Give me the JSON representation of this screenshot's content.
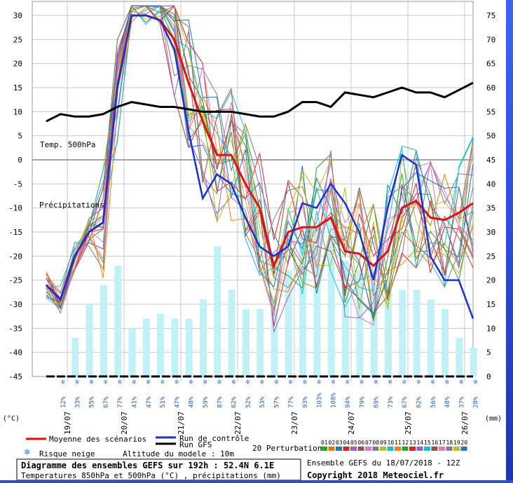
{
  "chart_data": {
    "type": "line",
    "title": "Diagramme des ensembles GEFS sur 192h : 52.4N 6.1E",
    "subtitle": "Temperatures 850hPa et 500hPa (°C) , précipitations (mm)",
    "model_altitude": "Altitude du modele : 10m",
    "run_info": "Ensemble GEFS du 18/07/2018 - 12Z",
    "copyright": "Copyright 2018 Meteociel.fr",
    "y_left_unit": "(°C)",
    "y_right_unit": "(mm)",
    "y_left_ticks": [
      "30",
      "25",
      "20",
      "15",
      "10",
      "5",
      "0",
      "-5",
      "-10",
      "-15",
      "-20",
      "-25",
      "-30",
      "-35",
      "-40",
      "-45"
    ],
    "y_right_ticks": [
      "75",
      "70",
      "65",
      "60",
      "55",
      "50",
      "45",
      "40",
      "35",
      "30",
      "25",
      "20",
      "15",
      "10",
      "5",
      "0"
    ],
    "ylim_left": [
      -45,
      30
    ],
    "ylim_right": [
      0,
      75
    ],
    "x_ticks": [
      "19/07",
      "20/07",
      "21/07",
      "22/07",
      "23/07",
      "24/07",
      "25/07",
      "26/07"
    ],
    "annotations": {
      "temp500": "Temp. 500hPa",
      "precip": "Précipitations"
    },
    "legend": {
      "mean": "Moyenne des scénarios",
      "control": "Run de contrôle",
      "gfs": "Run GFS",
      "perturbations": "20 Perturbations",
      "snow": "Risque neige",
      "member_numbers": [
        "01",
        "02",
        "03",
        "04",
        "05",
        "06",
        "07",
        "08",
        "09",
        "10",
        "11",
        "12",
        "13",
        "14",
        "15",
        "16",
        "17",
        "18",
        "19",
        "20"
      ],
      "member_colors": [
        "#2ca02c",
        "#e07b00",
        "#1f77b4",
        "#d62728",
        "#9467bd",
        "#8c564b",
        "#e377c2",
        "#7f7f7f",
        "#bcbd22",
        "#17becf",
        "#ff7f0e",
        "#2ca02c",
        "#d62728",
        "#9467bd",
        "#17becf",
        "#8c564b",
        "#e377c2",
        "#7f7f7f",
        "#bcbd22",
        "#1f77b4"
      ]
    },
    "snow_risk_labels": [
      "12%",
      "33%",
      "55%",
      "67%",
      "77%",
      "41%",
      "47%",
      "51%",
      "47%",
      "48%",
      "59%",
      "87%",
      "62%",
      "52%",
      "53%",
      "57%",
      "77%",
      "93%",
      "103%",
      "108%",
      "94%",
      "79%",
      "69%",
      "73%",
      "67%",
      "62%",
      "56%",
      "48%",
      "37%",
      "28%"
    ],
    "precip_bars": [
      0,
      8,
      15,
      19,
      23,
      10,
      12,
      13,
      12,
      12,
      16,
      27,
      18,
      14,
      14,
      14,
      22,
      30,
      32,
      33,
      24,
      22,
      19,
      20,
      18,
      18,
      16,
      14,
      8,
      6
    ],
    "series": [
      {
        "name": "Moyenne des scénarios",
        "color": "#e01010",
        "x": [
          0,
          1,
          2,
          3,
          4,
          5,
          6,
          7,
          8,
          9,
          10,
          11,
          12,
          13,
          14,
          15,
          16,
          17,
          18,
          19,
          20,
          21,
          22,
          23,
          24,
          25,
          26,
          27,
          28,
          29,
          30
        ],
        "values": [
          -26,
          -29,
          -20,
          -15,
          -13,
          15,
          30,
          30,
          29,
          25,
          16,
          8,
          1,
          1,
          -5,
          -10,
          -22,
          -15,
          -14,
          -14,
          -12,
          -19,
          -19.5,
          -22,
          -19,
          -10,
          -8.5,
          -12,
          -12.5,
          -11,
          -9
        ]
      },
      {
        "name": "Run de contrôle",
        "color": "#1a30d0",
        "x": [
          0,
          1,
          2,
          3,
          4,
          5,
          6,
          7,
          8,
          9,
          10,
          11,
          12,
          13,
          14,
          15,
          16,
          17,
          18,
          19,
          20,
          21,
          22,
          23,
          24,
          25,
          26,
          27,
          28,
          29,
          30
        ],
        "values": [
          -26,
          -29,
          -20,
          -15,
          -13,
          15,
          30,
          30,
          29,
          23,
          6,
          -8,
          -3,
          -5,
          -12,
          -18,
          -20,
          -18,
          -9,
          -10,
          -5,
          -9,
          -15,
          -25,
          -10,
          1,
          -1,
          -20,
          -25,
          -25,
          -33
        ]
      },
      {
        "name": "Run GFS",
        "color": "#000000",
        "x": [
          0,
          1,
          2,
          3,
          4,
          5,
          6,
          7,
          8,
          9,
          10,
          11,
          12,
          13,
          14,
          15,
          16,
          17,
          18,
          19,
          20,
          21,
          22,
          23,
          24,
          25,
          26,
          27,
          28,
          29,
          30
        ],
        "values": [
          8,
          9.5,
          9,
          9,
          9.5,
          11,
          12,
          11.5,
          11,
          11,
          10.5,
          10,
          10,
          10,
          9.5,
          9,
          9,
          10,
          12,
          12,
          11,
          14,
          13.5,
          13,
          14,
          15,
          14,
          14,
          13,
          14.5,
          16
        ]
      }
    ]
  }
}
